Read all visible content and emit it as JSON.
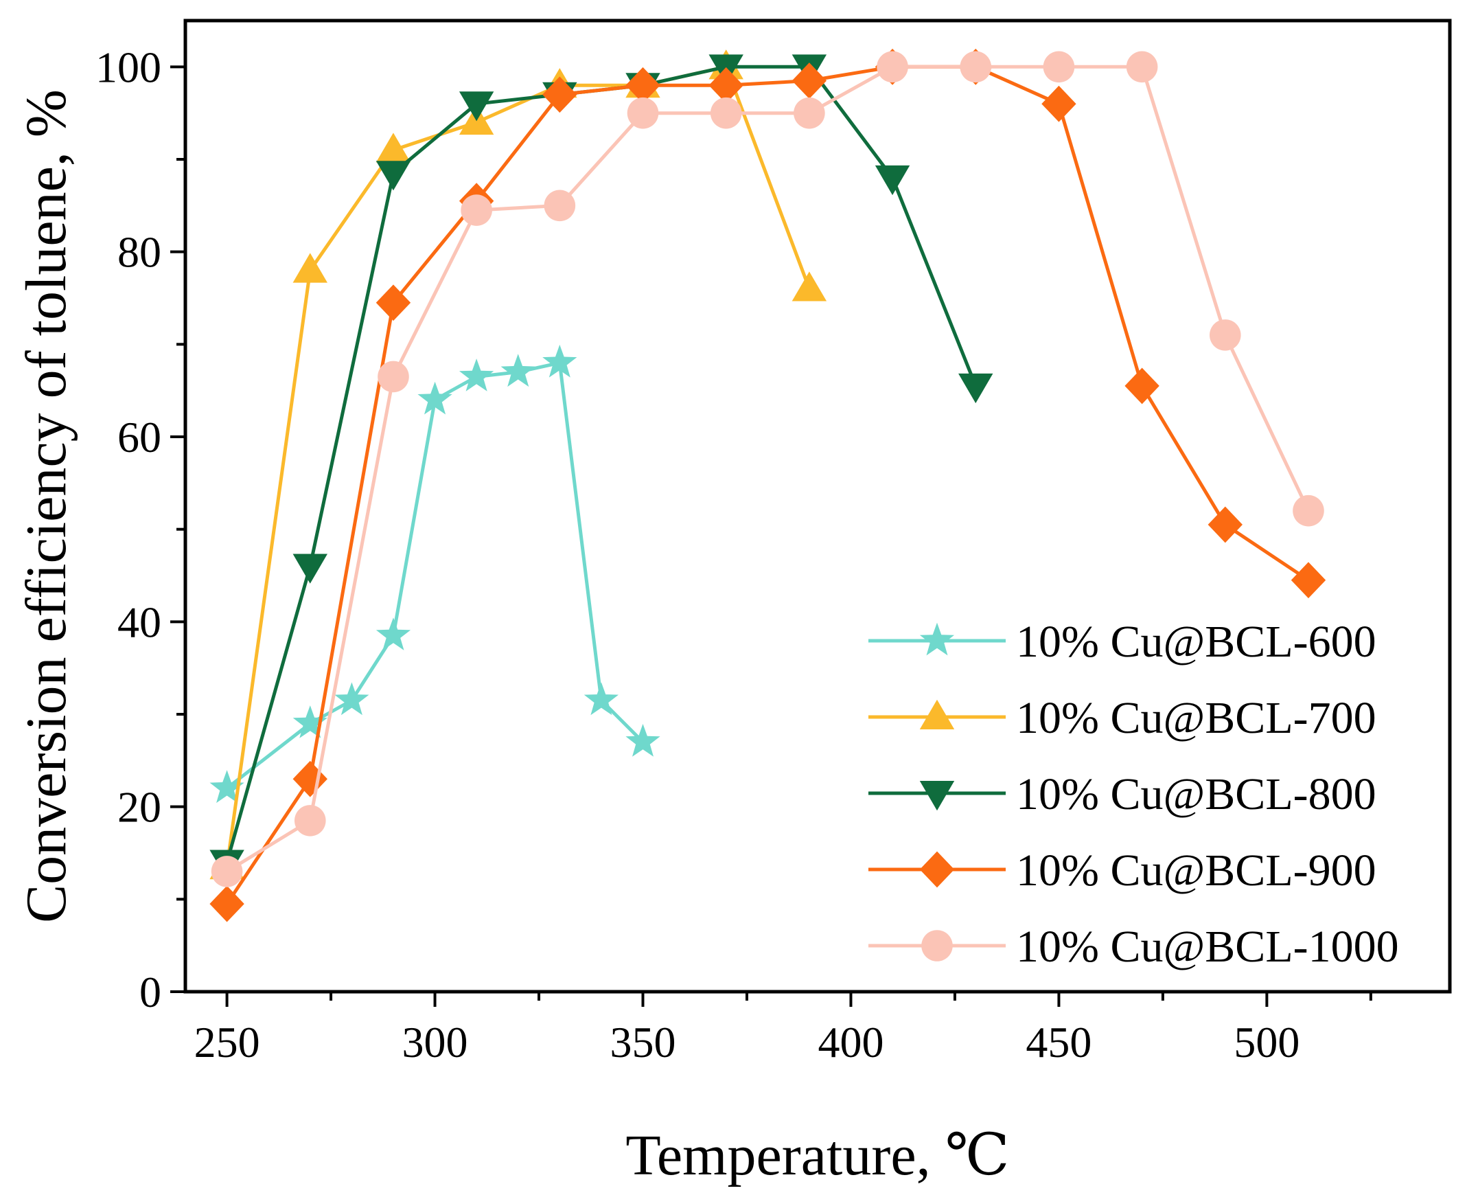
{
  "chart_data": {
    "type": "line",
    "title": "",
    "xlabel": "Temperature, ℃",
    "ylabel": "Conversion efficiency of toluene, %",
    "xlim": [
      240,
      544
    ],
    "ylim": [
      0,
      105
    ],
    "x_ticks": [
      250,
      300,
      350,
      400,
      450,
      500
    ],
    "x_minor_ticks": [
      275,
      325,
      375,
      425,
      475,
      525
    ],
    "y_ticks": [
      0,
      20,
      40,
      60,
      80,
      100
    ],
    "y_minor_ticks": [
      10,
      30,
      50,
      70,
      90
    ],
    "legend_position": "bottom-right",
    "grid": false,
    "series": [
      {
        "name": "10% Cu@BCL-600",
        "color": "#6fd8cc",
        "marker": "star",
        "x": [
          250,
          270,
          280,
          290,
          300,
          310,
          320,
          330,
          340,
          350
        ],
        "y": [
          22,
          29,
          31.5,
          38.5,
          64,
          66.5,
          67,
          68,
          31.5,
          27
        ]
      },
      {
        "name": "10% Cu@BCL-700",
        "color": "#fbb92b",
        "marker": "triangle-up",
        "x": [
          250,
          270,
          290,
          310,
          330,
          350,
          370,
          390
        ],
        "y": [
          13.5,
          78,
          91,
          94,
          98,
          98,
          100,
          76
        ]
      },
      {
        "name": "10% Cu@BCL-800",
        "color": "#0f6c3d",
        "marker": "triangle-down",
        "x": [
          250,
          270,
          290,
          310,
          330,
          350,
          370,
          390,
          410,
          430
        ],
        "y": [
          14,
          46,
          88.5,
          96,
          97,
          98,
          100,
          100,
          88,
          65.5
        ]
      },
      {
        "name": "10% Cu@BCL-900",
        "color": "#fb6a12",
        "marker": "diamond",
        "x": [
          250,
          270,
          290,
          310,
          330,
          350,
          370,
          390,
          410,
          430,
          450,
          470,
          490,
          510
        ],
        "y": [
          9.5,
          23,
          74.5,
          85.5,
          97,
          98,
          98,
          98.5,
          100,
          100,
          96,
          65.5,
          50.5,
          44.5
        ]
      },
      {
        "name": "10% Cu@BCL-1000",
        "color": "#fbc4b6",
        "marker": "circle",
        "x": [
          250,
          270,
          290,
          310,
          330,
          350,
          370,
          390,
          410,
          430,
          450,
          470,
          490,
          510
        ],
        "y": [
          13,
          18.5,
          66.5,
          84.5,
          85,
          95,
          95,
          95,
          100,
          100,
          100,
          100,
          71,
          52
        ]
      }
    ]
  }
}
